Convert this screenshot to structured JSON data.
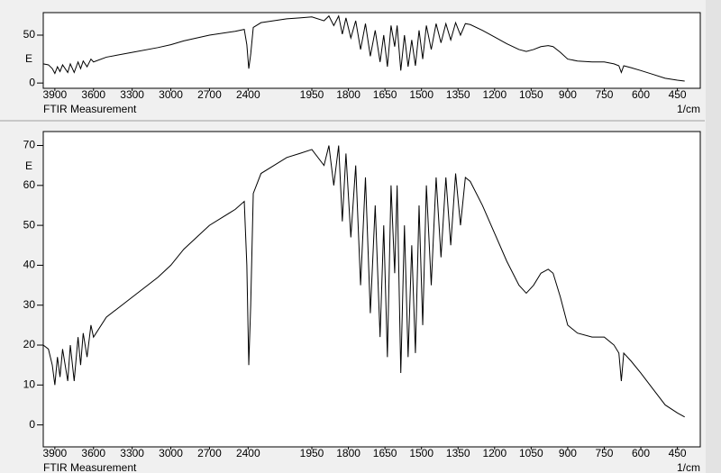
{
  "chart_data": [
    {
      "type": "line",
      "xlabel": "FTIR Measurement",
      "x_unit": "1/cm",
      "ylabel": "E",
      "color": "#000000",
      "xlim": [
        3990,
        356
      ],
      "x_scale_break": 2000,
      "ylim": [
        -5.5,
        73.5
      ],
      "xticks": [
        3900,
        3600,
        3300,
        3000,
        2700,
        2400,
        1950,
        1800,
        1650,
        1500,
        1350,
        1200,
        1050,
        900,
        750,
        600,
        450
      ],
      "yticks": [
        50,
        0
      ],
      "x": [
        3990,
        3950,
        3920,
        3900,
        3880,
        3860,
        3840,
        3800,
        3780,
        3750,
        3720,
        3700,
        3680,
        3650,
        3620,
        3600,
        3500,
        3300,
        3100,
        3000,
        2900,
        2700,
        2500,
        2430,
        2410,
        2395,
        2380,
        2360,
        2300,
        2200,
        2100,
        2000,
        1950,
        1900,
        1880,
        1860,
        1840,
        1825,
        1810,
        1790,
        1770,
        1750,
        1730,
        1710,
        1690,
        1670,
        1655,
        1640,
        1625,
        1610,
        1600,
        1585,
        1570,
        1555,
        1540,
        1525,
        1510,
        1495,
        1480,
        1460,
        1440,
        1420,
        1400,
        1380,
        1360,
        1340,
        1320,
        1300,
        1250,
        1200,
        1150,
        1100,
        1070,
        1040,
        1010,
        980,
        960,
        930,
        900,
        860,
        800,
        750,
        710,
        690,
        680,
        670,
        640,
        600,
        550,
        500,
        450,
        420
      ],
      "values": [
        20,
        19,
        15,
        10,
        17,
        12,
        19,
        11,
        20,
        11,
        22,
        15,
        23,
        17,
        25,
        22,
        27,
        32,
        37,
        40,
        44,
        50,
        54,
        56,
        40,
        15,
        30,
        58,
        63,
        65,
        67,
        68,
        69,
        65,
        70,
        60,
        70,
        51,
        68,
        47,
        65,
        35,
        62,
        28,
        55,
        22,
        50,
        17,
        60,
        38,
        60,
        13,
        50,
        17,
        45,
        18,
        55,
        25,
        60,
        35,
        62,
        42,
        62,
        45,
        63,
        50,
        62,
        61,
        55,
        48,
        41,
        35,
        33,
        35,
        38,
        39,
        38,
        32,
        25,
        23,
        22,
        22,
        20,
        18,
        11,
        18,
        16,
        13,
        9,
        5,
        3,
        2
      ]
    },
    {
      "type": "line",
      "xlabel": "FTIR Measurement",
      "x_unit": "1/cm",
      "ylabel": "E",
      "color": "#000000",
      "xlim": [
        3990,
        356
      ],
      "x_scale_break": 2000,
      "ylim": [
        -5.5,
        73.5
      ],
      "xticks": [
        3900,
        3600,
        3300,
        3000,
        2700,
        2400,
        1950,
        1800,
        1650,
        1500,
        1350,
        1200,
        1050,
        900,
        750,
        600,
        450
      ],
      "yticks": [
        70,
        60,
        50,
        40,
        30,
        20,
        10,
        0
      ],
      "x": [
        3990,
        3950,
        3920,
        3900,
        3880,
        3860,
        3840,
        3800,
        3780,
        3750,
        3720,
        3700,
        3680,
        3650,
        3620,
        3600,
        3500,
        3300,
        3100,
        3000,
        2900,
        2700,
        2500,
        2430,
        2410,
        2395,
        2380,
        2360,
        2300,
        2200,
        2100,
        2000,
        1950,
        1900,
        1880,
        1860,
        1840,
        1825,
        1810,
        1790,
        1770,
        1750,
        1730,
        1710,
        1690,
        1670,
        1655,
        1640,
        1625,
        1610,
        1600,
        1585,
        1570,
        1555,
        1540,
        1525,
        1510,
        1495,
        1480,
        1460,
        1440,
        1420,
        1400,
        1380,
        1360,
        1340,
        1320,
        1300,
        1250,
        1200,
        1150,
        1100,
        1070,
        1040,
        1010,
        980,
        960,
        930,
        900,
        860,
        800,
        750,
        710,
        690,
        680,
        670,
        640,
        600,
        550,
        500,
        450,
        420
      ],
      "values": [
        20,
        19,
        15,
        10,
        17,
        12,
        19,
        11,
        20,
        11,
        22,
        15,
        23,
        17,
        25,
        22,
        27,
        32,
        37,
        40,
        44,
        50,
        54,
        56,
        40,
        15,
        30,
        58,
        63,
        65,
        67,
        68,
        69,
        65,
        70,
        60,
        70,
        51,
        68,
        47,
        65,
        35,
        62,
        28,
        55,
        22,
        50,
        17,
        60,
        38,
        60,
        13,
        50,
        17,
        45,
        18,
        55,
        25,
        60,
        35,
        62,
        42,
        62,
        45,
        63,
        50,
        62,
        61,
        55,
        48,
        41,
        35,
        33,
        35,
        38,
        39,
        38,
        32,
        25,
        23,
        22,
        22,
        20,
        18,
        11,
        18,
        16,
        13,
        9,
        5,
        3,
        2
      ]
    }
  ]
}
